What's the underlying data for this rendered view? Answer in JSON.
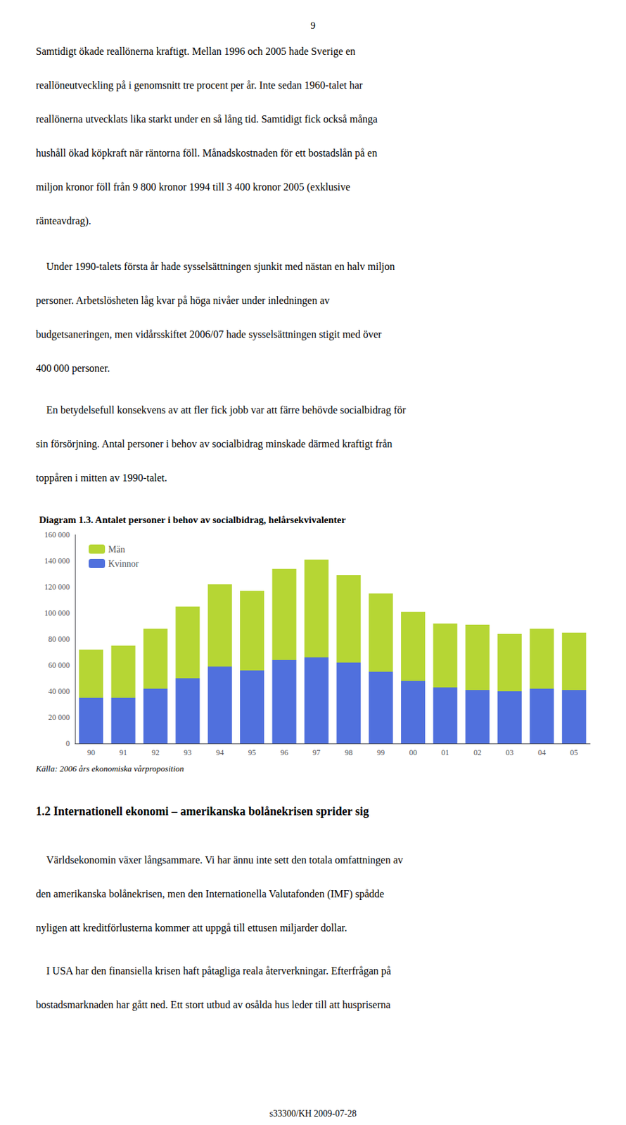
{
  "chart_data": {
    "type": "bar",
    "stacked": true,
    "title": "Diagram 1.3. Antalet personer i behov av socialbidrag, helårsekvivalenter",
    "categories": [
      "90",
      "91",
      "92",
      "93",
      "94",
      "95",
      "96",
      "97",
      "98",
      "99",
      "00",
      "01",
      "02",
      "03",
      "04",
      "05"
    ],
    "series": [
      {
        "name": "Kvinnor",
        "values": [
          35000,
          35000,
          42000,
          50000,
          59000,
          56000,
          64000,
          66000,
          62000,
          55000,
          48000,
          43000,
          41000,
          40000,
          42000,
          41000
        ]
      },
      {
        "name": "Män",
        "values": [
          37000,
          40000,
          46000,
          55000,
          63000,
          61000,
          70000,
          75000,
          67000,
          60000,
          53000,
          49000,
          50000,
          44000,
          46000,
          44000
        ]
      }
    ],
    "ylim": [
      0,
      160000
    ],
    "yticks": [
      0,
      {
        "value": 20000,
        "label": "20 000"
      },
      {
        "value": 40000,
        "label": "40 000"
      },
      {
        "value": 60000,
        "label": "60 000"
      },
      {
        "value": 80000,
        "label": "80 000"
      },
      {
        "value": 100000,
        "label": "100 000"
      },
      {
        "value": 120000,
        "label": "120 000"
      },
      {
        "value": 140000,
        "label": "140 000"
      },
      {
        "value": 160000,
        "label": "160 000"
      }
    ],
    "grid": false,
    "legend": "upper left",
    "annotations": [
      "9",
      "Samtidigt ökade reallönerna kraftigt. Mellan 1996 och 2005 hade Sverige en",
      "reallöneutveckling på i genomsnitt tre procent per år. Inte sedan 1960-talet har",
      "reallönerna utvecklats lika starkt under en så lång tid. Samtidigt fick också många",
      "hushåll ökad köpkraft när räntorna föll. Månadskostnaden för ett bostadslån på en",
      "miljon kronor föll från 9 800 kronor 1994 till 3 400 kronor 2005 (exklusive",
      "ränteavdrag).",
      " Under 1990-talets första år hade sysselsättningen sjunkit med nästan en halv miljon",
      "personer. Arbetslösheten låg kvar på höga nivåer under inledningen av",
      "budgetsaneringen, men vidårsskiftet 2006/07 hade sysselsättningen stigit med över",
      "400 000 personer.",
      " En betydelsefull konsekvens av att fler fick jobb var att färre behövde socialbidrag för",
      "sin försörjning. Antal personer i behov av socialbidrag minskade därmed kraftigt från",
      "toppåren i mitten av 1990-talet.",
      "Källa: 2006 års ekonomiska vårproposition",
      "1.2 Internationell ekonomi – amerikanska bolånekrisen sprider sig",
      " Världsekonomin växer långsammare. Vi har ännu inte sett den totala omfattningen av",
      "den amerikanska bolånekrisen, men den Internationella Valutafonden (IMF) spådde",
      "nyligen att kreditförlusterna kommer att uppgå till ettusen miljarder dollar.",
      " I USA har den finansiella krisen haft påtagliga reala återverkningar. Efterfrågan på",
      "bostadsmarknaden har gått ned. Ett stort utbud av osålda hus leder till att huspriserna",
      "s33300/KH 2009-07-28"
    ]
  }
}
